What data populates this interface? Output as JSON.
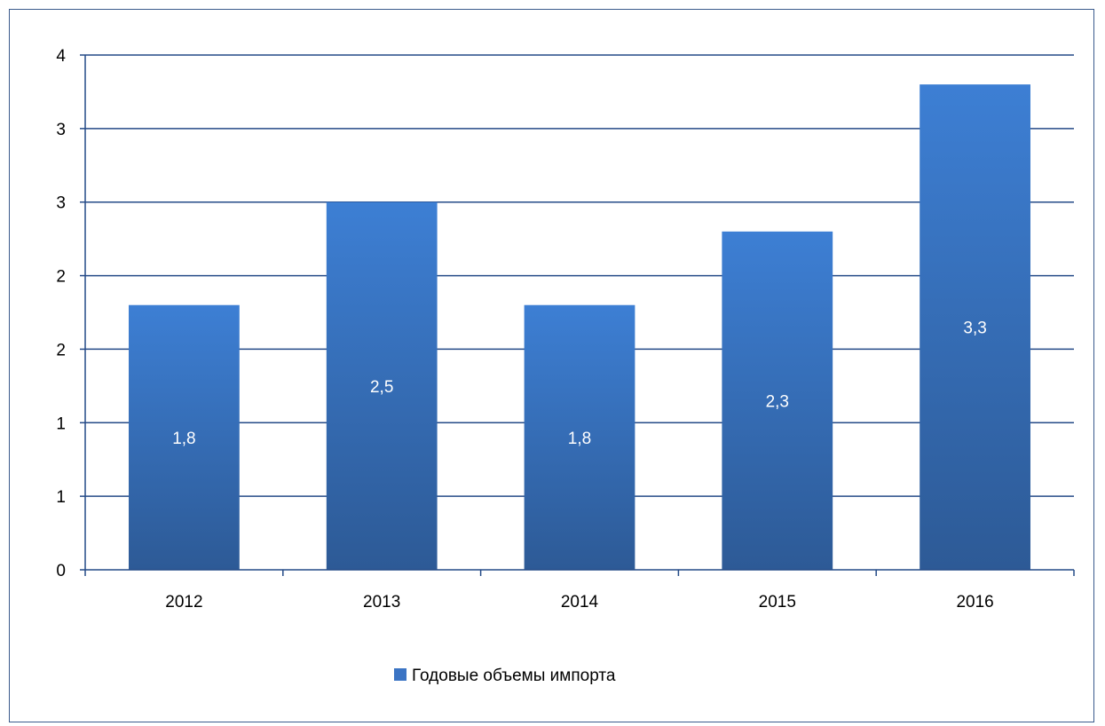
{
  "chart_data": {
    "type": "bar",
    "categories": [
      "2012",
      "2013",
      "2014",
      "2015",
      "2016"
    ],
    "series": [
      {
        "name": "Годовые объемы импорта",
        "values": [
          1.8,
          2.5,
          1.8,
          2.3,
          3.3
        ],
        "data_labels": [
          "1,8",
          "2,5",
          "1,8",
          "2,3",
          "3,3"
        ],
        "color": "#3b74c4"
      }
    ],
    "ylim": [
      0,
      3.5
    ],
    "y_tick_values": [
      0,
      0.5,
      1,
      1.5,
      2,
      2.5,
      3,
      3.5
    ],
    "y_tick_labels": [
      "0",
      "1",
      "1",
      "2",
      "2",
      "3",
      "3",
      "4"
    ],
    "grid": true,
    "legend": "bottom",
    "xlabel": "",
    "ylabel": "",
    "title": ""
  },
  "colors": {
    "bar_top": "#3d7fd4",
    "bar_bottom": "#2d5a96",
    "grid": "#244a87",
    "frame": "#3a5a8c"
  }
}
